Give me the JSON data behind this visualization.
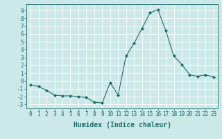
{
  "x": [
    0,
    1,
    2,
    3,
    4,
    5,
    6,
    7,
    8,
    9,
    10,
    11,
    12,
    13,
    14,
    15,
    16,
    17,
    18,
    19,
    20,
    21,
    22,
    23
  ],
  "y": [
    -0.5,
    -0.7,
    -1.2,
    -1.8,
    -1.9,
    -1.9,
    -2.0,
    -2.1,
    -2.7,
    -2.8,
    -0.2,
    -1.8,
    3.2,
    4.8,
    6.7,
    8.7,
    9.1,
    6.4,
    3.2,
    2.1,
    0.8,
    0.6,
    0.8,
    0.5
  ],
  "line_color": "#1a6b6b",
  "marker": "D",
  "marker_size": 2,
  "background_color": "#cce9e9",
  "grid_color": "#ffffff",
  "xlabel": "Humidex (Indice chaleur)",
  "ylim": [
    -3.5,
    9.8
  ],
  "xlim": [
    -0.5,
    23.5
  ],
  "yticks": [
    -3,
    -2,
    -1,
    0,
    1,
    2,
    3,
    4,
    5,
    6,
    7,
    8,
    9
  ],
  "xticks": [
    0,
    1,
    2,
    3,
    4,
    5,
    6,
    7,
    8,
    9,
    10,
    11,
    12,
    13,
    14,
    15,
    16,
    17,
    18,
    19,
    20,
    21,
    22,
    23
  ],
  "tick_fontsize": 5.5,
  "xlabel_fontsize": 7,
  "label_color": "#1a6b6b"
}
